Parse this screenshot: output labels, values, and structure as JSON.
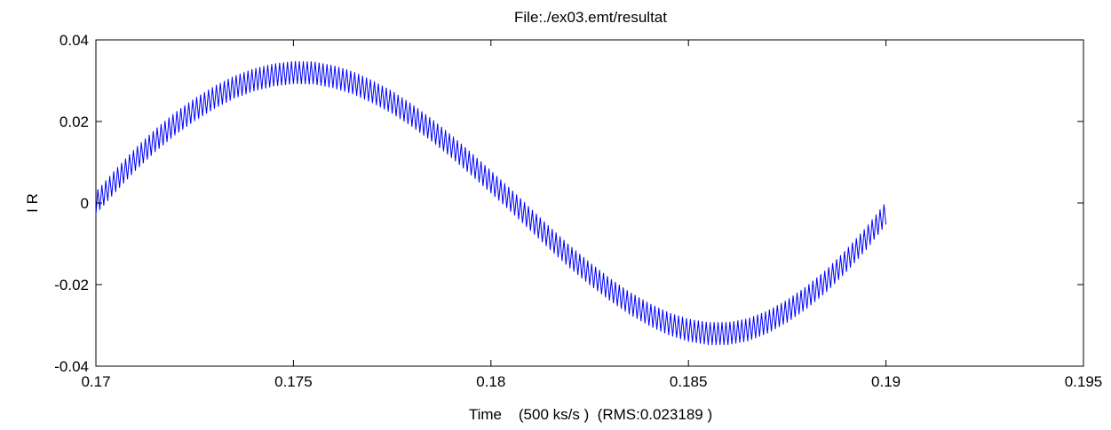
{
  "chart_data": {
    "type": "line",
    "title": "File:./ex03.emt/resultat",
    "xlabel": "Time    (500 ks/s )  (RMS:0.023189 )",
    "ylabel": "I R",
    "xlim": [
      0.17,
      0.195
    ],
    "ylim": [
      -0.04,
      0.04
    ],
    "xticks": [
      0.17,
      0.175,
      0.18,
      0.185,
      0.19,
      0.195
    ],
    "xtick_labels": [
      "0.17",
      "0.175",
      "0.18",
      "0.185",
      "0.19",
      "0.195"
    ],
    "yticks": [
      0.04,
      0.02,
      0,
      -0.02,
      -0.04
    ],
    "ytick_labels": [
      "0.04",
      "0.02",
      "0",
      "-0.02",
      "-0.04"
    ],
    "grid": false,
    "line_color": "#0000ff",
    "series": [
      {
        "x": [
          0.17,
          0.1705,
          0.171,
          0.1715,
          0.172,
          0.1725,
          0.173,
          0.1735,
          0.174,
          0.1745,
          0.175,
          0.1755,
          0.176,
          0.1765,
          0.177,
          0.1775,
          0.178,
          0.1785,
          0.179,
          0.1795,
          0.18,
          0.1805,
          0.181,
          0.1815,
          0.182,
          0.1825,
          0.183,
          0.1835,
          0.184,
          0.1845,
          0.185,
          0.1855,
          0.186,
          0.1865,
          0.187,
          0.1875,
          0.188,
          0.1885,
          0.189,
          0.1895,
          0.19
        ],
        "y": [
          0.0,
          0.0055,
          0.0107,
          0.0153,
          0.0194,
          0.0229,
          0.0259,
          0.0284,
          0.0302,
          0.0314,
          0.032,
          0.0319,
          0.031,
          0.0295,
          0.0273,
          0.0247,
          0.0215,
          0.0179,
          0.0139,
          0.0096,
          0.0052,
          0.0007,
          -0.004,
          -0.0087,
          -0.0132,
          -0.0173,
          -0.0211,
          -0.0245,
          -0.0273,
          -0.0296,
          -0.0312,
          -0.032,
          -0.032,
          -0.0311,
          -0.0292,
          -0.0265,
          -0.0231,
          -0.019,
          -0.0141,
          -0.0087,
          -0.0025
        ]
      }
    ],
    "ripple": {
      "amplitude": 0.0028,
      "frequency_hz": 10000
    }
  }
}
